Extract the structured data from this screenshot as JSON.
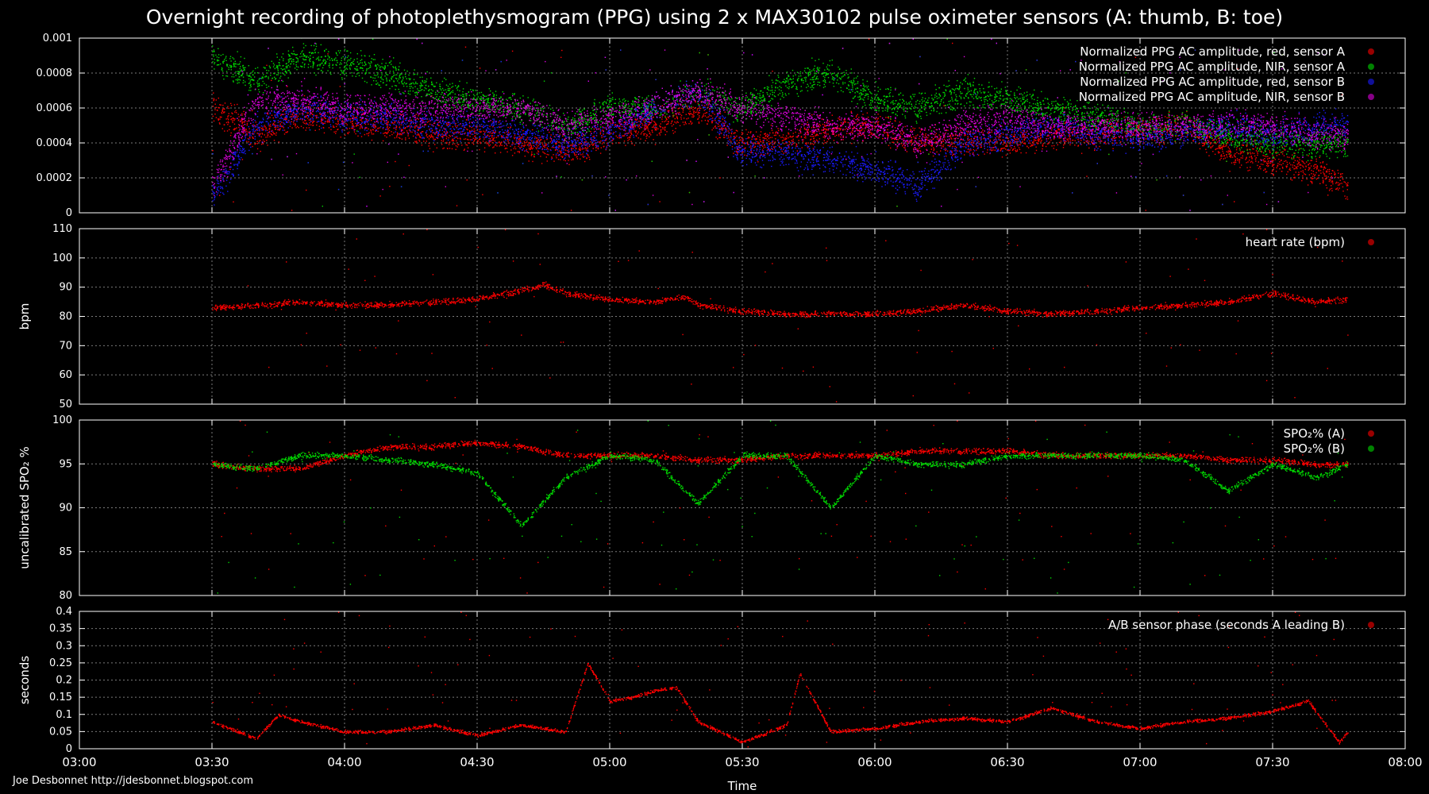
{
  "title": "Overnight recording of photoplethysmogram (PPG) using 2 x MAX30102 pulse oximeter sensors (A: thumb, B: toe)",
  "credit": "Joe Desbonnet http://jdesbonnet.blogspot.com",
  "colors": {
    "red": "#ff0000",
    "green": "#00d800",
    "blue": "#1a1aff",
    "magenta": "#e000e0",
    "background": "#000000",
    "grid": "#7a7a7a"
  },
  "chart_data": [
    {
      "type": "scatter",
      "ylabel": "",
      "ylim": [
        0,
        0.001
      ],
      "yticks": [
        "0.001",
        "0.0008",
        "0.0006",
        "0.0004",
        "0.0002",
        "0"
      ],
      "ytick_values": [
        0.001,
        0.0008,
        0.0006,
        0.0004,
        0.0002,
        0
      ],
      "legend_position": "top-right",
      "series": [
        {
          "name": "Normalized PPG AC amplitude, red, sensor A",
          "color": "#ff0000",
          "x": [
            "03:30",
            "03:40",
            "03:50",
            "04:00",
            "04:10",
            "04:20",
            "04:30",
            "04:40",
            "04:50",
            "05:00",
            "05:10",
            "05:20",
            "05:30",
            "05:40",
            "05:50",
            "06:00",
            "06:10",
            "06:20",
            "06:30",
            "06:40",
            "06:50",
            "07:00",
            "07:10",
            "07:20",
            "07:30",
            "07:40",
            "07:47"
          ],
          "y": [
            0.0006,
            0.00045,
            0.00055,
            0.00052,
            0.0005,
            0.00045,
            0.00045,
            0.0004,
            0.00035,
            0.00045,
            0.0005,
            0.0006,
            0.0004,
            0.00042,
            0.00048,
            0.0005,
            0.0004,
            0.00042,
            0.0004,
            0.00045,
            0.00045,
            0.00048,
            0.0005,
            0.00035,
            0.0003,
            0.00025,
            0.00015
          ]
        },
        {
          "name": "Normalized PPG AC amplitude, NIR, sensor A",
          "color": "#00d800",
          "x": [
            "03:30",
            "03:40",
            "03:50",
            "04:00",
            "04:10",
            "04:20",
            "04:30",
            "04:40",
            "04:50",
            "05:00",
            "05:10",
            "05:20",
            "05:30",
            "05:40",
            "05:50",
            "06:00",
            "06:10",
            "06:20",
            "06:30",
            "06:40",
            "06:50",
            "07:00",
            "07:10",
            "07:20",
            "07:30",
            "07:40",
            "07:47"
          ],
          "y": [
            0.0009,
            0.00075,
            0.0009,
            0.00085,
            0.0008,
            0.0007,
            0.00065,
            0.0006,
            0.0005,
            0.0006,
            0.0006,
            0.0007,
            0.0006,
            0.00075,
            0.0008,
            0.00065,
            0.0006,
            0.0007,
            0.00065,
            0.0006,
            0.00055,
            0.0005,
            0.0005,
            0.00045,
            0.0004,
            0.0004,
            0.0004
          ]
        },
        {
          "name": "Normalized PPG AC amplitude, red, sensor B",
          "color": "#1a1aff",
          "x": [
            "03:30",
            "03:40",
            "03:50",
            "04:00",
            "04:10",
            "04:20",
            "04:30",
            "04:40",
            "04:50",
            "05:00",
            "05:10",
            "05:20",
            "05:30",
            "05:40",
            "05:50",
            "06:00",
            "06:10",
            "06:20",
            "06:30",
            "06:40",
            "06:50",
            "07:00",
            "07:10",
            "07:20",
            "07:30",
            "07:40",
            "07:47"
          ],
          "y": [
            0.0001,
            0.0005,
            0.0006,
            0.00055,
            0.00055,
            0.0005,
            0.0005,
            0.00045,
            0.0004,
            0.00045,
            0.0006,
            0.0007,
            0.00035,
            0.00035,
            0.0003,
            0.00025,
            0.00015,
            0.0004,
            0.00045,
            0.0005,
            0.00045,
            0.00045,
            0.00045,
            0.0005,
            0.00045,
            0.0005,
            0.0005
          ]
        },
        {
          "name": "Normalized PPG AC amplitude, NIR, sensor B",
          "color": "#e000e0",
          "x": [
            "03:30",
            "03:40",
            "03:50",
            "04:00",
            "04:10",
            "04:20",
            "04:30",
            "04:40",
            "04:50",
            "05:00",
            "05:10",
            "05:20",
            "05:30",
            "05:40",
            "05:50",
            "06:00",
            "06:10",
            "06:20",
            "06:30",
            "06:40",
            "06:50",
            "07:00",
            "07:10",
            "07:20",
            "07:30",
            "07:40",
            "07:47"
          ],
          "y": [
            0.00015,
            0.00065,
            0.00065,
            0.0006,
            0.0006,
            0.0006,
            0.0006,
            0.0006,
            0.0005,
            0.00055,
            0.0006,
            0.0007,
            0.0006,
            0.00055,
            0.0005,
            0.0005,
            0.0004,
            0.0005,
            0.00055,
            0.0005,
            0.0005,
            0.0005,
            0.0005,
            0.0005,
            0.0005,
            0.00045,
            0.00045
          ]
        }
      ]
    },
    {
      "type": "scatter",
      "ylabel": "bpm",
      "ylim": [
        50,
        110
      ],
      "yticks": [
        "110",
        "100",
        "90",
        "80",
        "70",
        "60",
        "50"
      ],
      "ytick_values": [
        110,
        100,
        90,
        80,
        70,
        60,
        50
      ],
      "legend_position": "top-right",
      "series": [
        {
          "name": "heart rate (bpm)",
          "color": "#ff0000",
          "x": [
            "03:30",
            "03:40",
            "03:50",
            "04:00",
            "04:10",
            "04:20",
            "04:30",
            "04:40",
            "04:45",
            "04:50",
            "05:00",
            "05:10",
            "05:17",
            "05:20",
            "05:30",
            "05:40",
            "05:50",
            "06:00",
            "06:10",
            "06:20",
            "06:30",
            "06:40",
            "06:50",
            "07:00",
            "07:10",
            "07:20",
            "07:30",
            "07:40",
            "07:47"
          ],
          "y": [
            83,
            84,
            85,
            84,
            84,
            85,
            86,
            89,
            91,
            88,
            86,
            85,
            87,
            84,
            82,
            81,
            81,
            81,
            82,
            84,
            82,
            81,
            82,
            83,
            84,
            85,
            88,
            85,
            86
          ]
        }
      ]
    },
    {
      "type": "scatter",
      "ylabel": "uncalibrated SPO₂ %",
      "ylim": [
        80,
        100
      ],
      "yticks": [
        "100",
        "95",
        "90",
        "85",
        "80"
      ],
      "ytick_values": [
        100,
        95,
        90,
        85,
        80
      ],
      "legend_position": "top-right",
      "series": [
        {
          "name": "SPO₂% (A)",
          "color": "#ff0000",
          "x": [
            "03:30",
            "03:40",
            "03:50",
            "04:00",
            "04:10",
            "04:20",
            "04:30",
            "04:40",
            "04:50",
            "05:00",
            "05:10",
            "05:20",
            "05:30",
            "05:40",
            "05:50",
            "06:00",
            "06:10",
            "06:20",
            "06:30",
            "06:40",
            "06:50",
            "07:00",
            "07:10",
            "07:20",
            "07:30",
            "07:40",
            "07:47"
          ],
          "y": [
            95,
            94.5,
            94.5,
            96,
            97,
            97,
            97.5,
            97,
            96,
            96,
            96,
            95.5,
            95.5,
            96,
            96,
            96,
            96.5,
            96.5,
            96.5,
            96,
            96,
            96,
            96,
            95.5,
            95.5,
            95,
            95
          ]
        },
        {
          "name": "SPO₂% (B)",
          "color": "#00d800",
          "x": [
            "03:30",
            "03:40",
            "03:50",
            "04:00",
            "04:10",
            "04:20",
            "04:30",
            "04:40",
            "04:50",
            "05:00",
            "05:10",
            "05:20",
            "05:30",
            "05:40",
            "05:50",
            "06:00",
            "06:10",
            "06:20",
            "06:30",
            "06:40",
            "06:50",
            "07:00",
            "07:10",
            "07:20",
            "07:30",
            "07:40",
            "07:47"
          ],
          "y": [
            95,
            94.5,
            96,
            96,
            95.5,
            95,
            94,
            88,
            93.5,
            96,
            95.5,
            90.5,
            96,
            96,
            90,
            96,
            95,
            95,
            96,
            96,
            96,
            96,
            95.5,
            92,
            95,
            93.5,
            95
          ]
        }
      ]
    },
    {
      "type": "scatter",
      "ylabel": "seconds",
      "ylim": [
        0,
        0.4
      ],
      "yticks": [
        "0.4",
        "0.35",
        "0.3",
        "0.25",
        "0.2",
        "0.15",
        "0.1",
        "0.05",
        "0"
      ],
      "ytick_values": [
        0.4,
        0.35,
        0.3,
        0.25,
        0.2,
        0.15,
        0.1,
        0.05,
        0
      ],
      "xlabel": "Time",
      "xticks": [
        "03:00",
        "03:30",
        "04:00",
        "04:30",
        "05:00",
        "05:30",
        "06:00",
        "06:30",
        "07:00",
        "07:30",
        "08:00"
      ],
      "legend_position": "top-right",
      "series": [
        {
          "name": "A/B sensor phase (seconds A leading B)",
          "color": "#ff0000",
          "x": [
            "03:30",
            "03:40",
            "03:45",
            "03:50",
            "04:00",
            "04:10",
            "04:20",
            "04:30",
            "04:40",
            "04:50",
            "04:55",
            "05:00",
            "05:05",
            "05:10",
            "05:15",
            "05:20",
            "05:30",
            "05:40",
            "05:43",
            "05:50",
            "06:00",
            "06:10",
            "06:20",
            "06:30",
            "06:40",
            "06:50",
            "07:00",
            "07:10",
            "07:20",
            "07:30",
            "07:38",
            "07:45",
            "07:47"
          ],
          "y": [
            0.08,
            0.03,
            0.1,
            0.08,
            0.05,
            0.05,
            0.07,
            0.04,
            0.07,
            0.05,
            0.25,
            0.14,
            0.15,
            0.17,
            0.18,
            0.08,
            0.02,
            0.07,
            0.22,
            0.05,
            0.06,
            0.08,
            0.09,
            0.08,
            0.12,
            0.08,
            0.06,
            0.08,
            0.09,
            0.11,
            0.14,
            0.02,
            0.05
          ]
        }
      ]
    }
  ]
}
